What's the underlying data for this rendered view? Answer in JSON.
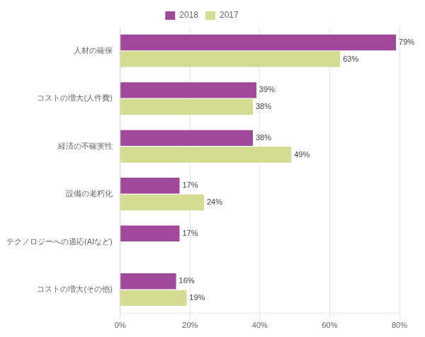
{
  "chart_data": {
    "type": "bar",
    "orientation": "horizontal",
    "categories": [
      "人材の確保",
      "コストの増大(人件費)",
      "経済の不確実性",
      "設備の老朽化",
      "テクノロジーへの適応(AIなど)",
      "コストの増大(その他)"
    ],
    "series": [
      {
        "name": "2018",
        "color": "#A0489A",
        "values": [
          79,
          39,
          38,
          17,
          17,
          16
        ],
        "value_labels": [
          "79%",
          "39%",
          "38%",
          "17%",
          "17%",
          "16%"
        ]
      },
      {
        "name": "2017",
        "color": "#D4DC91",
        "values": [
          63,
          38,
          49,
          24,
          0,
          19
        ],
        "value_labels": [
          "63%",
          "38%",
          "49%",
          "24%",
          null,
          "19%"
        ]
      }
    ],
    "xlim": [
      0,
      80
    ],
    "xticks": [
      {
        "value": 0,
        "label": "0%"
      },
      {
        "value": 20,
        "label": "20%"
      },
      {
        "value": 40,
        "label": "40%"
      },
      {
        "value": 60,
        "label": "60%"
      },
      {
        "value": 80,
        "label": "80%"
      }
    ],
    "grid": true,
    "legend": "top",
    "data_labels": true
  }
}
